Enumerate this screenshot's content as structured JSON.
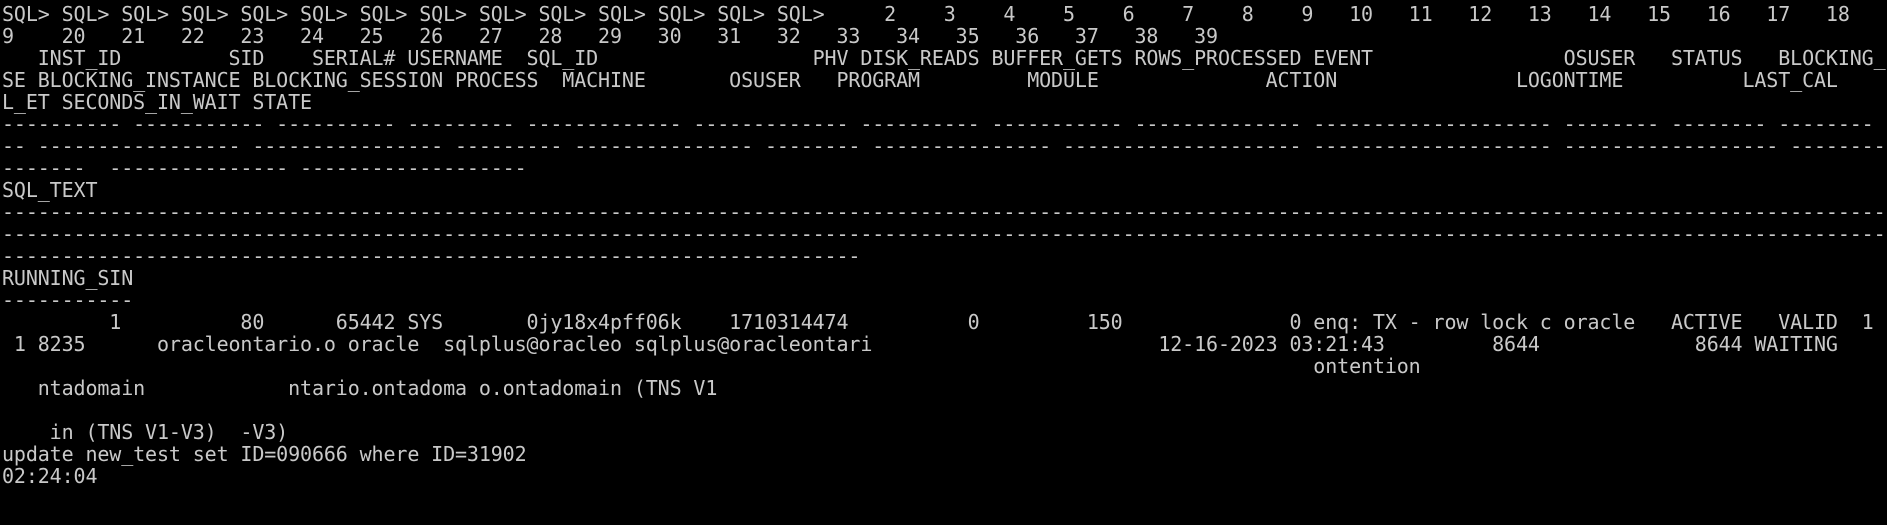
{
  "terminal": {
    "app": "sqlplus",
    "bg_color": "#000000",
    "fg_color": "#c9c9c9",
    "lines": [
      "SQL> SQL> SQL> SQL> SQL> SQL> SQL> SQL> SQL> SQL> SQL> SQL> SQL> SQL>     2    3    4    5    6    7    8    9   10   11   12   13   14   15   16   17   18   1",
      "9    20   21   22   23   24   25   26   27   28   29   30   31   32   33   34   35   36   37   38   39",
      "   INST_ID         SID    SERIAL# USERNAME  SQL_ID                  PHV DISK_READS BUFFER_GETS ROWS_PROCESSED EVENT                OSUSER   STATUS   BLOCKING_",
      "SE BLOCKING_INSTANCE BLOCKING_SESSION PROCESS  MACHINE       OSUSER   PROGRAM         MODULE              ACTION               LOGONTIME          LAST_CAL",
      "L_ET SECONDS_IN_WAIT STATE",
      "---------- ----------- ---------- --------- ------------- ------------- ---------- ----------- -------------- -------------------- -------- -------- --------",
      "-- ----------------- ---------------- --------- --------------- -------- --------------- -------------------- -------------------- ------------------ --------",
      "-------  --------------- -------------------",
      "SQL_TEXT",
      "--------------------------------------------------------------------------------------------------------------------------------------------------------------",
      "--------------------------------------------------------------------------------------------------------------------------------------------------------------",
      "------------------------------------------------------------------------",
      "RUNNING_SIN",
      "-----------",
      "         1          80      65442 SYS       0jy18x4pff06k    1710314474          0         150              0 enq: TX - row lock c oracle   ACTIVE   VALID  1",
      " 1 8235      oracleontario.o oracle  sqlplus@oracleo sqlplus@oracleontari                        12-16-2023 03:21:43         8644             8644 WAITING",
      "                                                                                                              ontention",
      "   ntadomain            ntario.ontadoma o.ontadomain (TNS V1",
      "",
      "    in (TNS V1-V3)  -V3)",
      "update new_test set ID=090666 where ID=31902",
      "02:24:04",
      "",
      ""
    ]
  }
}
